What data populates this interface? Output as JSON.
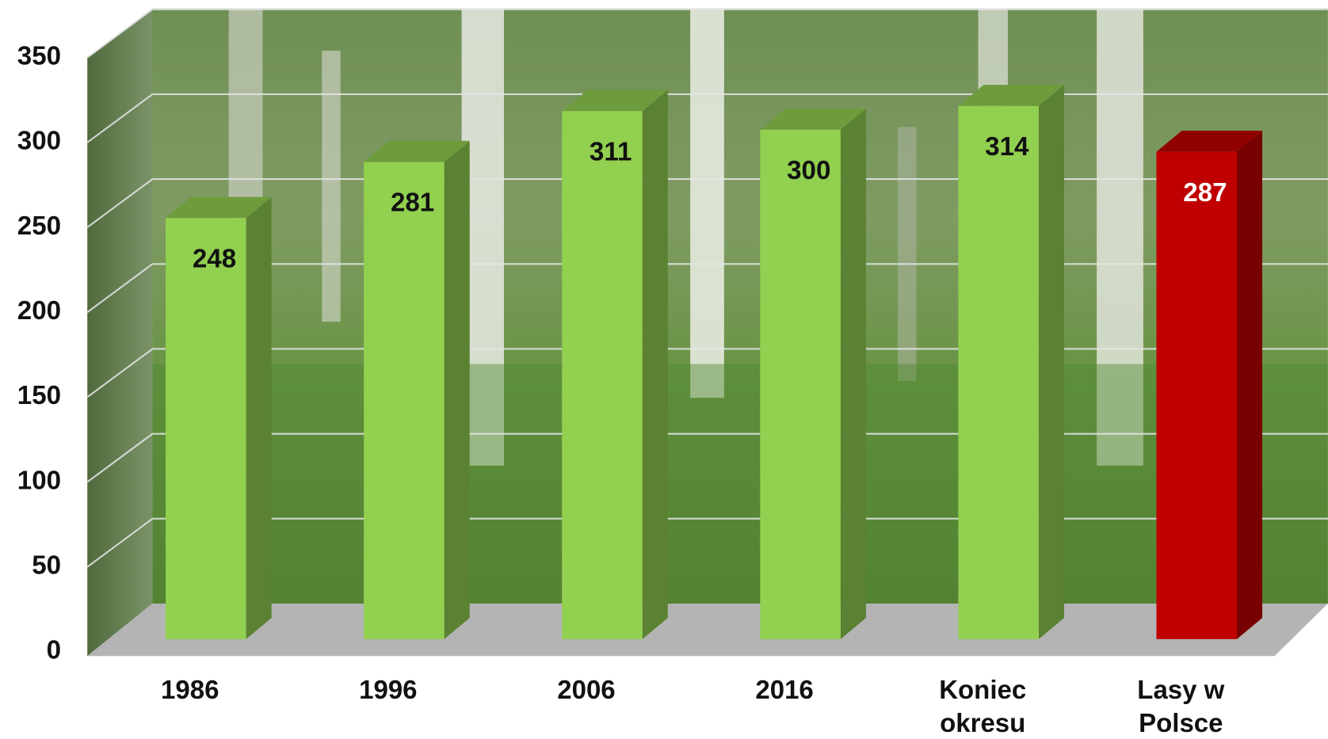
{
  "chart_data": {
    "type": "bar3d",
    "categories": [
      "1986",
      "1996",
      "2006",
      "2016",
      "Koniec okresu",
      "Lasy w Polsce"
    ],
    "values": [
      248,
      281,
      311,
      300,
      314,
      287
    ],
    "colors": [
      "#92d050",
      "#92d050",
      "#92d050",
      "#92d050",
      "#92d050",
      "#c00000"
    ],
    "ylim": [
      0,
      350
    ],
    "yticks": [
      0,
      50,
      100,
      150,
      200,
      250,
      300,
      350
    ],
    "grid": true
  }
}
